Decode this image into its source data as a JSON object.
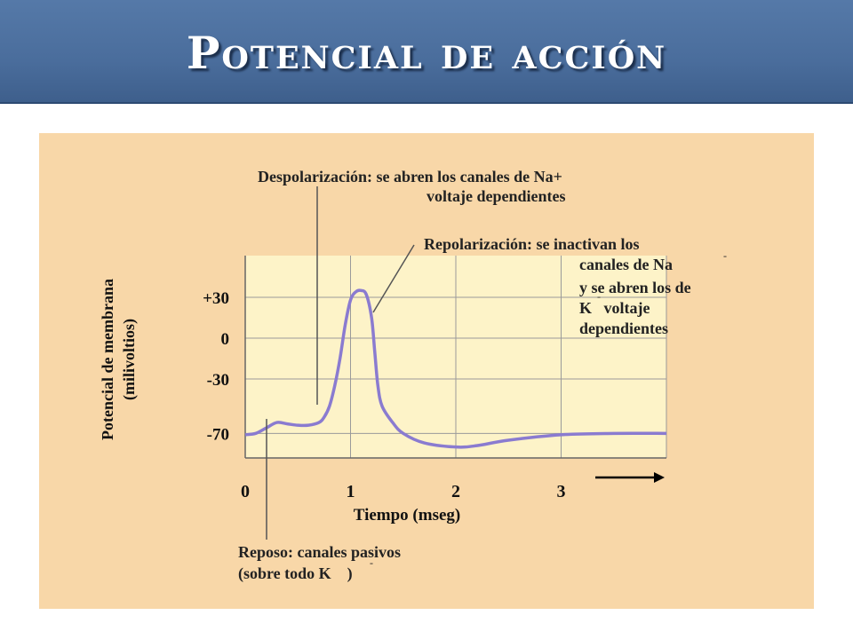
{
  "slide": {
    "title": "Potencial de acción"
  },
  "colors": {
    "banner": "#4a6d9c",
    "panel": "#f8d7a8",
    "plot_area": "#fdf3c8",
    "curve": "#8a7bd0",
    "grid": "#9a9a9a"
  },
  "chart_data": {
    "type": "line",
    "title": "",
    "xlabel": "Tiempo (mseg)",
    "ylabel": "Potencial de membrana (milivoltios)",
    "xlim": [
      0,
      4
    ],
    "ylim": [
      -100,
      50
    ],
    "x_ticks": [
      "0",
      "1",
      "2",
      "3"
    ],
    "y_ticks": [
      "+30",
      "0",
      "-30",
      "-70"
    ],
    "y_tick_values": [
      30,
      0,
      -30,
      -70
    ],
    "grid": true,
    "series": [
      {
        "x": [
          0,
          0.1,
          0.2,
          0.3,
          0.4,
          0.5,
          0.6,
          0.7,
          0.75,
          0.8,
          0.85,
          0.9,
          0.95,
          1.0,
          1.05,
          1.1,
          1.15,
          1.2,
          1.23,
          1.26,
          1.3,
          1.4,
          1.5,
          1.7,
          2.0,
          2.2,
          2.5,
          3.0,
          3.5,
          4.0
        ],
        "y": [
          -71,
          -70,
          -66,
          -62,
          -63,
          -64,
          -64,
          -62,
          -58,
          -50,
          -35,
          -15,
          10,
          28,
          34,
          35,
          32,
          15,
          -10,
          -35,
          -50,
          -62,
          -70,
          -77,
          -80,
          -79,
          -75,
          -71,
          -70,
          -70
        ]
      }
    ],
    "annotations": [
      {
        "id": "despol",
        "lines": [
          "Despolarización: se abren los canales de Na+",
          "voltaje dependientes"
        ]
      },
      {
        "id": "repol",
        "lines": [
          "Repolarización: se inactivan los",
          "canales de Na",
          "y se abren los de",
          "K   voltaje",
          "dependientes"
        ]
      },
      {
        "id": "reposo",
        "lines": [
          "Reposo: canales pasivos",
          "(sobre todo K    )"
        ]
      }
    ]
  }
}
